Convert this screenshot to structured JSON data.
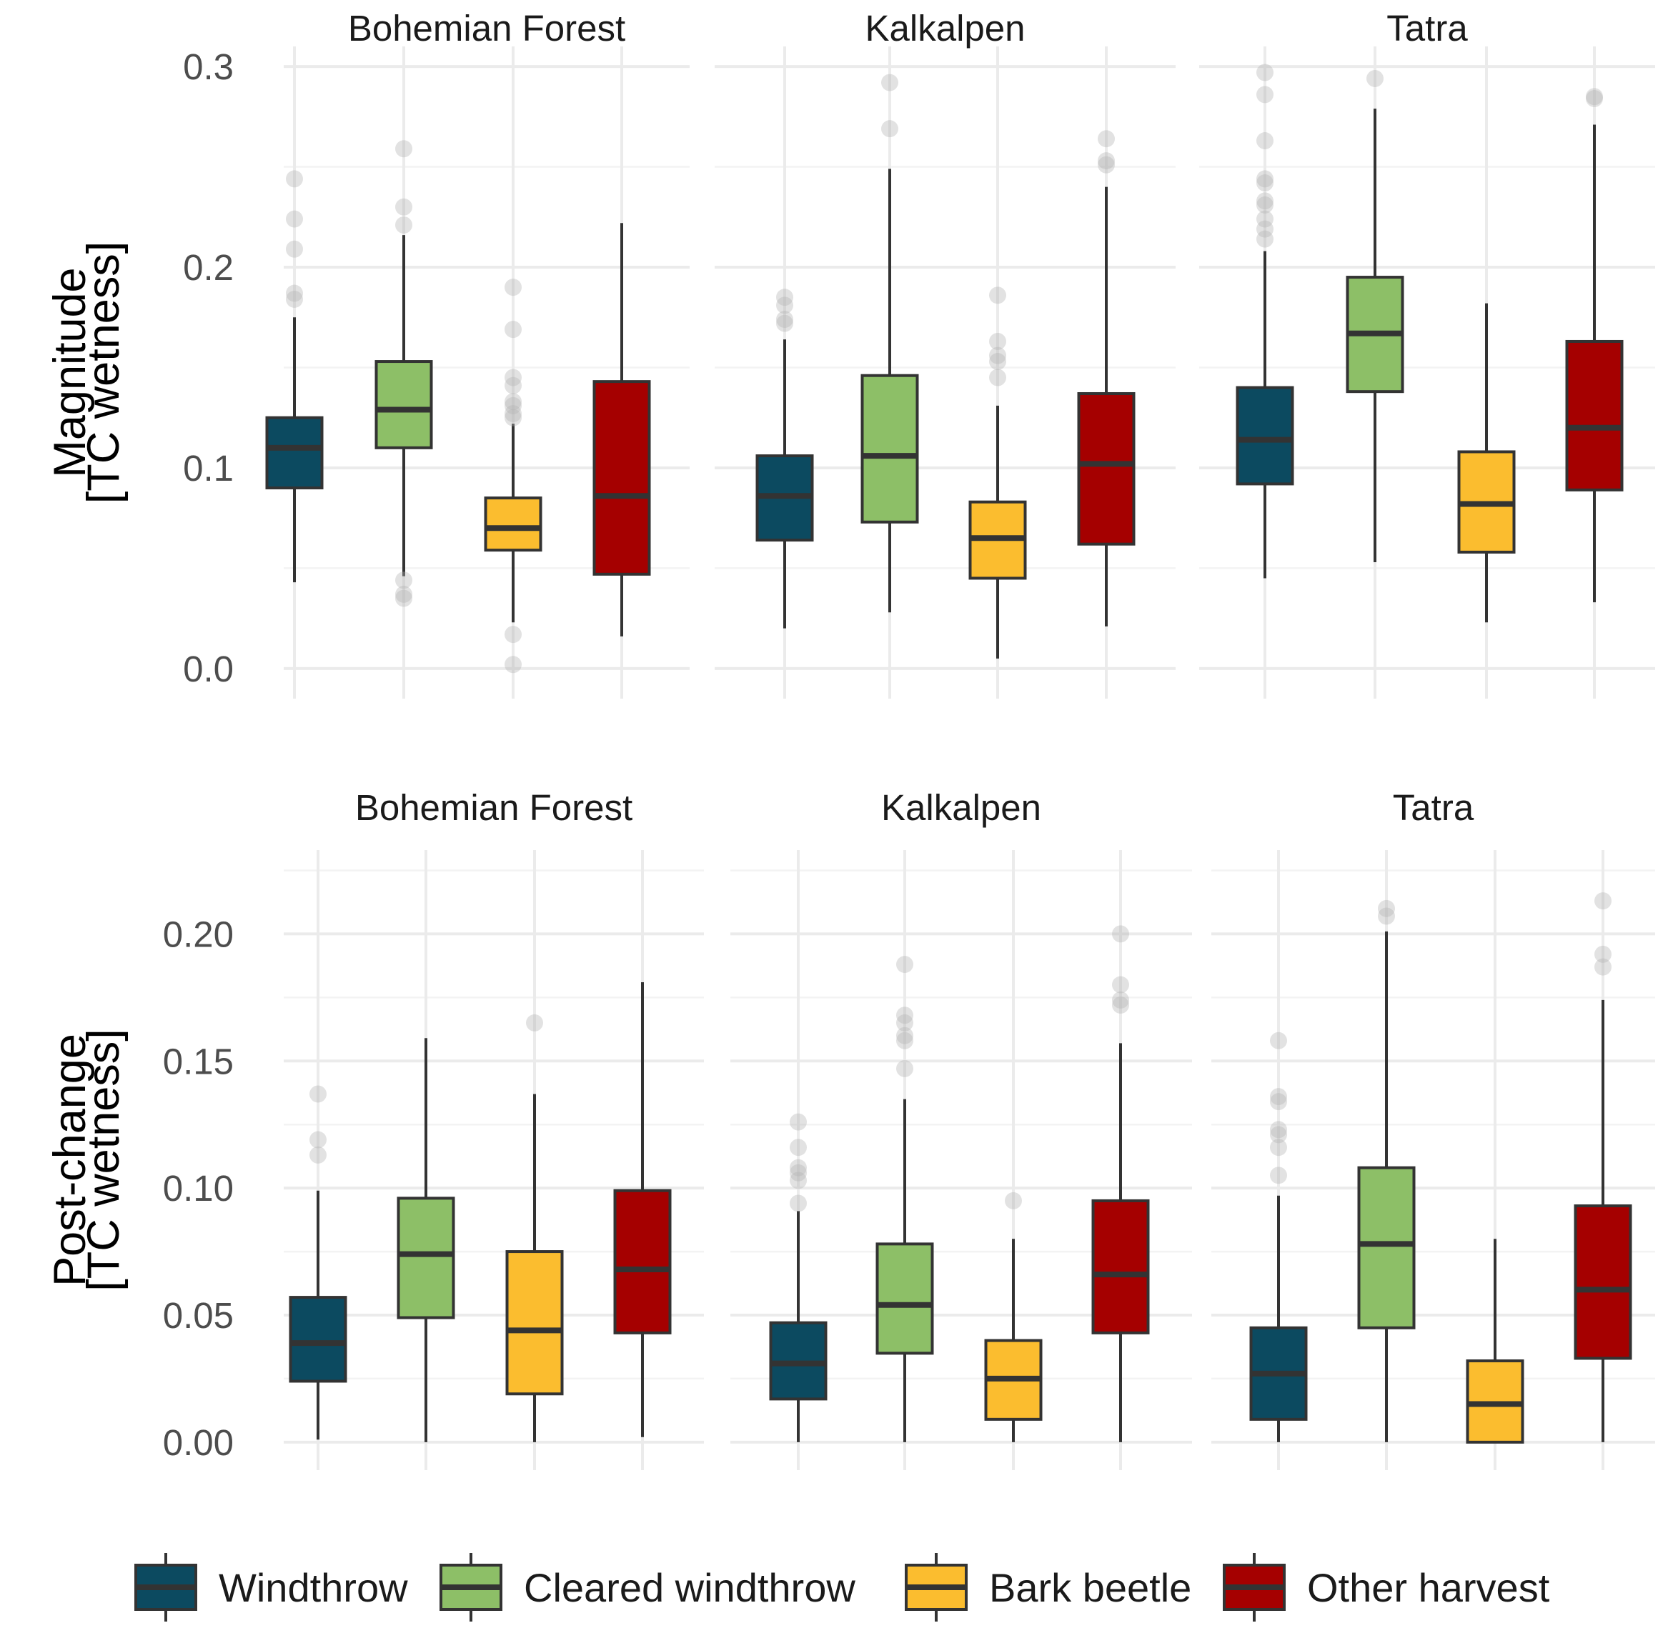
{
  "chart_data": {
    "type": "boxplot",
    "legend": {
      "position": "bottom",
      "items": [
        {
          "label": "Windthrow",
          "color": "#0c4a60"
        },
        {
          "label": "Cleared windthrow",
          "color": "#8dbf67"
        },
        {
          "label": "Bark beetle",
          "color": "#fbbd2f"
        },
        {
          "label": "Other harvest",
          "color": "#a50000"
        }
      ]
    },
    "panels": [
      {
        "row": 0,
        "ylabel_line1": "Magnitude",
        "ylabel_line2": "[TC wetness]",
        "ylim": [
          -0.015,
          0.31
        ],
        "yticks": [
          0.0,
          0.1,
          0.2,
          0.3
        ],
        "ytick_labels": [
          "0.0",
          "0.1",
          "0.2",
          "0.3"
        ],
        "facets": [
          {
            "title": "Bohemian Forest",
            "boxes": [
              {
                "category": "Windthrow",
                "lower": 0.043,
                "q1": 0.09,
                "median": 0.11,
                "q3": 0.125,
                "upper": 0.175,
                "outliers": [
                  0.184,
                  0.187,
                  0.209,
                  0.224,
                  0.244
                ]
              },
              {
                "category": "Cleared windthrow",
                "lower": 0.046,
                "q1": 0.11,
                "median": 0.129,
                "q3": 0.153,
                "upper": 0.216,
                "outliers": [
                  0.035,
                  0.037,
                  0.044,
                  0.221,
                  0.23,
                  0.259
                ]
              },
              {
                "category": "Bark beetle",
                "lower": 0.023,
                "q1": 0.059,
                "median": 0.07,
                "q3": 0.085,
                "upper": 0.122,
                "outliers": [
                  0.002,
                  0.017,
                  0.125,
                  0.127,
                  0.131,
                  0.133,
                  0.141,
                  0.145,
                  0.169,
                  0.19
                ]
              },
              {
                "category": "Other harvest",
                "lower": 0.016,
                "q1": 0.047,
                "median": 0.086,
                "q3": 0.143,
                "upper": 0.222,
                "outliers": []
              }
            ]
          },
          {
            "title": "Kalkalpen",
            "boxes": [
              {
                "category": "Windthrow",
                "lower": 0.02,
                "q1": 0.064,
                "median": 0.086,
                "q3": 0.106,
                "upper": 0.164,
                "outliers": [
                  0.172,
                  0.174,
                  0.181,
                  0.185
                ]
              },
              {
                "category": "Cleared windthrow",
                "lower": 0.028,
                "q1": 0.073,
                "median": 0.106,
                "q3": 0.146,
                "upper": 0.249,
                "outliers": [
                  0.269,
                  0.292
                ]
              },
              {
                "category": "Bark beetle",
                "lower": 0.005,
                "q1": 0.045,
                "median": 0.065,
                "q3": 0.083,
                "upper": 0.131,
                "outliers": [
                  0.145,
                  0.153,
                  0.156,
                  0.163,
                  0.186
                ]
              },
              {
                "category": "Other harvest",
                "lower": 0.021,
                "q1": 0.062,
                "median": 0.102,
                "q3": 0.137,
                "upper": 0.24,
                "outliers": [
                  0.251,
                  0.253,
                  0.264
                ]
              }
            ]
          },
          {
            "title": "Tatra",
            "boxes": [
              {
                "category": "Windthrow",
                "lower": 0.045,
                "q1": 0.092,
                "median": 0.114,
                "q3": 0.14,
                "upper": 0.208,
                "outliers": [
                  0.214,
                  0.219,
                  0.224,
                  0.231,
                  0.233,
                  0.242,
                  0.244,
                  0.263,
                  0.286,
                  0.297
                ]
              },
              {
                "category": "Cleared windthrow",
                "lower": 0.053,
                "q1": 0.138,
                "median": 0.167,
                "q3": 0.195,
                "upper": 0.279,
                "outliers": [
                  0.294
                ]
              },
              {
                "category": "Bark beetle",
                "lower": 0.023,
                "q1": 0.058,
                "median": 0.082,
                "q3": 0.108,
                "upper": 0.182,
                "outliers": []
              },
              {
                "category": "Other harvest",
                "lower": 0.033,
                "q1": 0.089,
                "median": 0.12,
                "q3": 0.163,
                "upper": 0.271,
                "outliers": [
                  0.284,
                  0.285
                ]
              }
            ]
          }
        ]
      },
      {
        "row": 1,
        "ylabel_line1": "Post-change",
        "ylabel_line2": "[TC wetness]",
        "ylim": [
          -0.011,
          0.233
        ],
        "yticks": [
          0.0,
          0.05,
          0.1,
          0.15,
          0.2
        ],
        "ytick_labels": [
          "0.00",
          "0.05",
          "0.10",
          "0.15",
          "0.20"
        ],
        "facets": [
          {
            "title": "Bohemian Forest",
            "boxes": [
              {
                "category": "Windthrow",
                "lower": 0.001,
                "q1": 0.024,
                "median": 0.039,
                "q3": 0.057,
                "upper": 0.099,
                "outliers": [
                  0.113,
                  0.119,
                  0.137
                ]
              },
              {
                "category": "Cleared windthrow",
                "lower": 0.0,
                "q1": 0.049,
                "median": 0.074,
                "q3": 0.096,
                "upper": 0.159,
                "outliers": []
              },
              {
                "category": "Bark beetle",
                "lower": 0.0,
                "q1": 0.019,
                "median": 0.044,
                "q3": 0.075,
                "upper": 0.137,
                "outliers": [
                  0.165
                ]
              },
              {
                "category": "Other harvest",
                "lower": 0.002,
                "q1": 0.043,
                "median": 0.068,
                "q3": 0.099,
                "upper": 0.181,
                "outliers": []
              }
            ]
          },
          {
            "title": "Kalkalpen",
            "boxes": [
              {
                "category": "Windthrow",
                "lower": 0.0,
                "q1": 0.017,
                "median": 0.031,
                "q3": 0.047,
                "upper": 0.091,
                "outliers": [
                  0.094,
                  0.103,
                  0.106,
                  0.108,
                  0.116,
                  0.126
                ]
              },
              {
                "category": "Cleared windthrow",
                "lower": 0.0,
                "q1": 0.035,
                "median": 0.054,
                "q3": 0.078,
                "upper": 0.135,
                "outliers": [
                  0.147,
                  0.158,
                  0.16,
                  0.165,
                  0.168,
                  0.188
                ]
              },
              {
                "category": "Bark beetle",
                "lower": 0.0,
                "q1": 0.009,
                "median": 0.025,
                "q3": 0.04,
                "upper": 0.08,
                "outliers": [
                  0.095
                ]
              },
              {
                "category": "Other harvest",
                "lower": 0.0,
                "q1": 0.043,
                "median": 0.066,
                "q3": 0.095,
                "upper": 0.157,
                "outliers": [
                  0.172,
                  0.174,
                  0.18,
                  0.2
                ]
              }
            ]
          },
          {
            "title": "Tatra",
            "boxes": [
              {
                "category": "Windthrow",
                "lower": 0.0,
                "q1": 0.009,
                "median": 0.027,
                "q3": 0.045,
                "upper": 0.097,
                "outliers": [
                  0.105,
                  0.116,
                  0.121,
                  0.123,
                  0.134,
                  0.136,
                  0.158
                ]
              },
              {
                "category": "Cleared windthrow",
                "lower": 0.0,
                "q1": 0.045,
                "median": 0.078,
                "q3": 0.108,
                "upper": 0.201,
                "outliers": [
                  0.207,
                  0.21
                ]
              },
              {
                "category": "Bark beetle",
                "lower": 0.0,
                "q1": 0.0,
                "median": 0.015,
                "q3": 0.032,
                "upper": 0.08,
                "outliers": []
              },
              {
                "category": "Other harvest",
                "lower": 0.0,
                "q1": 0.033,
                "median": 0.06,
                "q3": 0.093,
                "upper": 0.174,
                "outliers": [
                  0.187,
                  0.192,
                  0.213
                ]
              }
            ]
          }
        ]
      }
    ]
  }
}
